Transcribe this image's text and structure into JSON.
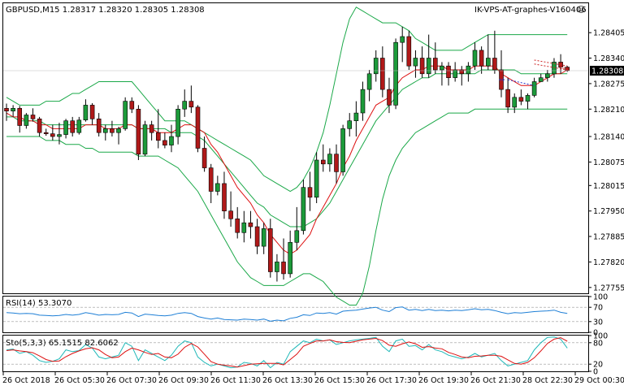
{
  "chart_data": {
    "type": "candlestick",
    "symbol_header": "GBPUSD,M15  1.28317 1.28320 1.28305 1.28308",
    "watermark": "IK-VPS-AT-graphes-V160406",
    "smiley": "☺",
    "current_price_label": "1.28308",
    "current_price": 1.28308,
    "ylim": [
      1.2774,
      1.2848
    ],
    "price_ticks": [
      "1.28405",
      "1.28340",
      "1.28275",
      "1.28210",
      "1.28140",
      "1.28075",
      "1.28015",
      "1.27950",
      "1.27885",
      "1.27820",
      "1.27755"
    ],
    "price_tick_values": [
      1.28405,
      1.2834,
      1.28275,
      1.2821,
      1.2814,
      1.28075,
      1.28015,
      1.2795,
      1.27885,
      1.2782,
      1.27755
    ],
    "x_tick_labels": [
      "26 Oct 2018",
      "26 Oct 05:30",
      "26 Oct 07:30",
      "26 Oct 09:30",
      "26 Oct 11:30",
      "26 Oct 13:30",
      "26 Oct 15:30",
      "26 Oct 17:30",
      "26 Oct 19:30",
      "26 Oct 21:30",
      "28 Oct 22:30",
      "29 Oct 00:30"
    ],
    "candles": [
      [
        1.28212,
        1.28224,
        1.2818,
        1.28205
      ],
      [
        1.28205,
        1.2822,
        1.2819,
        1.28212
      ],
      [
        1.28212,
        1.28218,
        1.2815,
        1.28168
      ],
      [
        1.28168,
        1.282,
        1.2816,
        1.28195
      ],
      [
        1.28195,
        1.28212,
        1.28178,
        1.28185
      ],
      [
        1.28185,
        1.2819,
        1.2814,
        1.2815
      ],
      [
        1.2815,
        1.2816,
        1.28142,
        1.28147
      ],
      [
        1.28147,
        1.2817,
        1.2813,
        1.2814
      ],
      [
        1.2814,
        1.28175,
        1.2812,
        1.28145
      ],
      [
        1.28145,
        1.28185,
        1.28135,
        1.2818
      ],
      [
        1.2818,
        1.2819,
        1.2814,
        1.2815
      ],
      [
        1.2815,
        1.2819,
        1.28145,
        1.28182
      ],
      [
        1.28182,
        1.28235,
        1.28178,
        1.2822
      ],
      [
        1.2822,
        1.28225,
        1.2817,
        1.28185
      ],
      [
        1.28185,
        1.282,
        1.2814,
        1.2815
      ],
      [
        1.2815,
        1.2817,
        1.2813,
        1.2816
      ],
      [
        1.2816,
        1.2818,
        1.2814,
        1.2815
      ],
      [
        1.2815,
        1.28165,
        1.2812,
        1.2816
      ],
      [
        1.2816,
        1.2824,
        1.28155,
        1.2823
      ],
      [
        1.2823,
        1.2824,
        1.282,
        1.2821
      ],
      [
        1.2821,
        1.2822,
        1.2808,
        1.28095
      ],
      [
        1.28095,
        1.2818,
        1.2809,
        1.2817
      ],
      [
        1.2817,
        1.2818,
        1.2813,
        1.2815
      ],
      [
        1.2815,
        1.2821,
        1.2811,
        1.2813
      ],
      [
        1.2813,
        1.2815,
        1.2811,
        1.28118
      ],
      [
        1.28118,
        1.2817,
        1.281,
        1.2814
      ],
      [
        1.2814,
        1.2822,
        1.2812,
        1.2821
      ],
      [
        1.2821,
        1.2826,
        1.2819,
        1.2823
      ],
      [
        1.2823,
        1.2827,
        1.282,
        1.28215
      ],
      [
        1.28215,
        1.2822,
        1.281,
        1.2811
      ],
      [
        1.2811,
        1.2814,
        1.2805,
        1.2806
      ],
      [
        1.2806,
        1.2807,
        1.2797,
        1.28
      ],
      [
        1.28,
        1.2804,
        1.2799,
        1.2802
      ],
      [
        1.2802,
        1.2805,
        1.2793,
        1.2795
      ],
      [
        1.2795,
        1.28,
        1.2791,
        1.2793
      ],
      [
        1.2793,
        1.2796,
        1.2788,
        1.27895
      ],
      [
        1.27895,
        1.2795,
        1.2787,
        1.2792
      ],
      [
        1.2792,
        1.2795,
        1.2788,
        1.2791
      ],
      [
        1.2791,
        1.2793,
        1.2784,
        1.2786
      ],
      [
        1.2786,
        1.2792,
        1.2784,
        1.27905
      ],
      [
        1.27905,
        1.2793,
        1.2778,
        1.27795
      ],
      [
        1.27795,
        1.2784,
        1.2777,
        1.2782
      ],
      [
        1.2782,
        1.2788,
        1.27775,
        1.2779
      ],
      [
        1.2779,
        1.279,
        1.2778,
        1.2787
      ],
      [
        1.2787,
        1.2796,
        1.2785,
        1.279
      ],
      [
        1.279,
        1.2803,
        1.2789,
        1.2801
      ],
      [
        1.2801,
        1.2805,
        1.2795,
        1.27985
      ],
      [
        1.27985,
        1.281,
        1.2797,
        1.2808
      ],
      [
        1.2808,
        1.2812,
        1.2805,
        1.2807
      ],
      [
        1.2807,
        1.2811,
        1.2805,
        1.28095
      ],
      [
        1.28095,
        1.2812,
        1.2802,
        1.2805
      ],
      [
        1.2805,
        1.2817,
        1.2804,
        1.2816
      ],
      [
        1.2816,
        1.282,
        1.2814,
        1.2818
      ],
      [
        1.2818,
        1.2823,
        1.2814,
        1.282
      ],
      [
        1.282,
        1.2828,
        1.2818,
        1.2826
      ],
      [
        1.2826,
        1.2831,
        1.2823,
        1.283
      ],
      [
        1.283,
        1.2836,
        1.2828,
        1.2834
      ],
      [
        1.2834,
        1.2837,
        1.2824,
        1.2826
      ],
      [
        1.2826,
        1.2829,
        1.282,
        1.2822
      ],
      [
        1.2822,
        1.2839,
        1.2821,
        1.2838
      ],
      [
        1.2838,
        1.2842,
        1.2833,
        1.28395
      ],
      [
        1.28395,
        1.2841,
        1.2831,
        1.2832
      ],
      [
        1.2832,
        1.2836,
        1.2829,
        1.2834
      ],
      [
        1.2834,
        1.2837,
        1.2829,
        1.283
      ],
      [
        1.283,
        1.284,
        1.2829,
        1.2834
      ],
      [
        1.2834,
        1.2838,
        1.283,
        1.2831
      ],
      [
        1.2831,
        1.2833,
        1.2827,
        1.2832
      ],
      [
        1.2832,
        1.2833,
        1.2827,
        1.2829
      ],
      [
        1.2829,
        1.2833,
        1.2828,
        1.2831
      ],
      [
        1.2831,
        1.2832,
        1.2827,
        1.283
      ],
      [
        1.283,
        1.2833,
        1.2828,
        1.2832
      ],
      [
        1.2832,
        1.2838,
        1.2831,
        1.2836
      ],
      [
        1.2836,
        1.2837,
        1.283,
        1.2832
      ],
      [
        1.2832,
        1.284,
        1.2831,
        1.2834
      ],
      [
        1.2834,
        1.2841,
        1.283,
        1.2831
      ],
      [
        1.2831,
        1.2836,
        1.2824,
        1.2826
      ],
      [
        1.2826,
        1.2829,
        1.282,
        1.28215
      ],
      [
        1.28215,
        1.2825,
        1.282,
        1.2824
      ],
      [
        1.2824,
        1.2826,
        1.2822,
        1.2823
      ],
      [
        1.2823,
        1.2825,
        1.2821,
        1.28245
      ],
      [
        1.28245,
        1.2829,
        1.2824,
        1.2828
      ],
      [
        1.2828,
        1.283,
        1.2828,
        1.2829
      ],
      [
        1.2829,
        1.2831,
        1.2828,
        1.283
      ],
      [
        1.283,
        1.2834,
        1.2829,
        1.2833
      ],
      [
        1.2833,
        1.2835,
        1.283,
        1.28317
      ],
      [
        1.28317,
        1.2832,
        1.28305,
        1.28308
      ]
    ],
    "bb_upper": [
      1.2824,
      1.2823,
      1.2822,
      1.2822,
      1.2822,
      1.2822,
      1.2823,
      1.2823,
      1.2823,
      1.2824,
      1.2825,
      1.2825,
      1.2826,
      1.2827,
      1.2828,
      1.2828,
      1.2828,
      1.2828,
      1.2828,
      1.2828,
      1.2826,
      1.2824,
      1.2822,
      1.282,
      1.2818,
      1.2818,
      1.2818,
      1.2818,
      1.2817,
      1.2816,
      1.2815,
      1.2814,
      1.2813,
      1.2812,
      1.2811,
      1.281,
      1.2809,
      1.2808,
      1.2806,
      1.2804,
      1.2803,
      1.2802,
      1.2801,
      1.28,
      1.2801,
      1.2803,
      1.2806,
      1.281,
      1.2815,
      1.2822,
      1.283,
      1.2838,
      1.2844,
      1.2847,
      1.2846,
      1.2845,
      1.2844,
      1.2843,
      1.2843,
      1.2843,
      1.2842,
      1.2841,
      1.2839,
      1.2838,
      1.2837,
      1.2836,
      1.2836,
      1.2836,
      1.2836,
      1.2836,
      1.2837,
      1.2838,
      1.2839,
      1.284,
      1.284,
      1.284,
      1.284,
      1.284,
      1.284,
      1.284,
      1.284,
      1.284,
      1.284,
      1.284,
      1.284,
      1.284
    ],
    "bb_middle": [
      1.2819,
      1.2819,
      1.2818,
      1.2818,
      1.2818,
      1.2818,
      1.2817,
      1.2817,
      1.2817,
      1.2817,
      1.2817,
      1.2817,
      1.2817,
      1.2817,
      1.2817,
      1.2817,
      1.2817,
      1.2817,
      1.2817,
      1.2817,
      1.2816,
      1.2816,
      1.2816,
      1.2816,
      1.2816,
      1.2815,
      1.2815,
      1.2815,
      1.2815,
      1.2814,
      1.2813,
      1.2811,
      1.2809,
      1.2807,
      1.2805,
      1.2803,
      1.2801,
      1.2799,
      1.2797,
      1.2796,
      1.2794,
      1.2793,
      1.2792,
      1.2791,
      1.2791,
      1.2791,
      1.2792,
      1.2793,
      1.2795,
      1.2797,
      1.28,
      1.2803,
      1.2806,
      1.2809,
      1.2812,
      1.2815,
      1.2818,
      1.282,
      1.2822,
      1.2824,
      1.2826,
      1.2827,
      1.2828,
      1.2829,
      1.2829,
      1.283,
      1.283,
      1.283,
      1.283,
      1.283,
      1.283,
      1.283,
      1.2831,
      1.2831,
      1.2831,
      1.2831,
      1.2831,
      1.2831,
      1.283,
      1.283,
      1.283,
      1.283,
      1.283,
      1.283,
      1.283,
      1.283
    ],
    "bb_lower": [
      1.2814,
      1.2814,
      1.2814,
      1.2814,
      1.2814,
      1.2814,
      1.2813,
      1.2813,
      1.2813,
      1.2812,
      1.2812,
      1.2812,
      1.2811,
      1.2811,
      1.281,
      1.281,
      1.281,
      1.281,
      1.281,
      1.281,
      1.2809,
      1.2809,
      1.2809,
      1.2809,
      1.2808,
      1.2807,
      1.2806,
      1.2804,
      1.2802,
      1.28,
      1.2797,
      1.2794,
      1.2791,
      1.2788,
      1.2785,
      1.2782,
      1.278,
      1.2778,
      1.2777,
      1.2776,
      1.2776,
      1.2776,
      1.2776,
      1.2777,
      1.2778,
      1.2779,
      1.2779,
      1.2778,
      1.2777,
      1.2775,
      1.2773,
      1.2772,
      1.2771,
      1.2771,
      1.2774,
      1.2781,
      1.279,
      1.2798,
      1.2804,
      1.2808,
      1.2811,
      1.2813,
      1.2815,
      1.2816,
      1.2817,
      1.2818,
      1.2819,
      1.282,
      1.282,
      1.282,
      1.282,
      1.2821,
      1.2821,
      1.2821,
      1.2821,
      1.2821,
      1.2821,
      1.2821,
      1.2821,
      1.2821,
      1.2821,
      1.2821,
      1.2821,
      1.2821,
      1.2821,
      1.2821
    ],
    "ma": [
      1.282,
      1.2819,
      1.2819,
      1.2818,
      1.2818,
      1.2817,
      1.2817,
      1.2816,
      1.2816,
      1.2816,
      1.2816,
      1.2816,
      1.2817,
      1.2817,
      1.2817,
      1.2816,
      1.2816,
      1.2816,
      1.2817,
      1.2817,
      1.2816,
      1.2816,
      1.2816,
      1.2815,
      1.2815,
      1.2815,
      1.2816,
      1.2817,
      1.2817,
      1.2816,
      1.2815,
      1.2812,
      1.281,
      1.2807,
      1.2804,
      1.2801,
      1.2799,
      1.2797,
      1.2794,
      1.2792,
      1.2789,
      1.2787,
      1.2785,
      1.2784,
      1.2785,
      1.2787,
      1.2789,
      1.2793,
      1.2796,
      1.2799,
      1.2802,
      1.2806,
      1.2809,
      1.2813,
      1.2816,
      1.2819,
      1.2822,
      1.2823,
      1.2824,
      1.2827,
      1.2829,
      1.283,
      1.2831,
      1.2831,
      1.2832,
      1.2832,
      1.2832,
      1.2831,
      1.2831,
      1.2831,
      1.2831,
      1.2832,
      1.2832,
      1.2832,
      1.2832,
      1.283,
      1.2829,
      1.2828,
      1.2827,
      1.2827,
      1.2827,
      1.2828,
      1.2829,
      1.283,
      1.283,
      1.2831
    ],
    "rsi_label": "RSI(14) 53.3070",
    "rsi_ticks": [
      "100",
      "70",
      "30",
      "0"
    ],
    "rsi_tick_values": [
      100,
      70,
      30,
      0
    ],
    "rsi": [
      55,
      54,
      52,
      53,
      52,
      48,
      47,
      46,
      47,
      50,
      48,
      50,
      55,
      52,
      48,
      50,
      49,
      50,
      56,
      54,
      44,
      51,
      49,
      47,
      46,
      48,
      53,
      55,
      53,
      44,
      40,
      37,
      40,
      36,
      35,
      34,
      37,
      36,
      34,
      37,
      31,
      34,
      32,
      39,
      42,
      49,
      47,
      54,
      53,
      55,
      51,
      59,
      61,
      62,
      65,
      68,
      70,
      62,
      58,
      69,
      71,
      62,
      64,
      61,
      64,
      61,
      62,
      60,
      62,
      61,
      63,
      66,
      63,
      64,
      61,
      56,
      52,
      55,
      54,
      56,
      58,
      59,
      60,
      62,
      56,
      53
    ],
    "sto_label": "Sto(5,3,3) 65.1515 82.6062",
    "sto_ticks": [
      "100",
      "80",
      "20",
      "0"
    ],
    "sto_tick_values": [
      100,
      80,
      20,
      0
    ],
    "sto_k": [
      60,
      62,
      50,
      55,
      45,
      30,
      25,
      28,
      35,
      60,
      55,
      58,
      75,
      65,
      40,
      35,
      40,
      45,
      80,
      70,
      30,
      60,
      50,
      40,
      30,
      45,
      70,
      85,
      80,
      40,
      25,
      15,
      20,
      15,
      10,
      12,
      25,
      22,
      15,
      30,
      10,
      25,
      20,
      55,
      70,
      85,
      80,
      90,
      85,
      88,
      75,
      80,
      85,
      88,
      90,
      92,
      95,
      70,
      55,
      85,
      90,
      70,
      72,
      60,
      75,
      60,
      55,
      45,
      40,
      35,
      40,
      50,
      40,
      45,
      50,
      30,
      15,
      20,
      25,
      30,
      60,
      80,
      95,
      96,
      90,
      65
    ],
    "sto_d": [
      58,
      60,
      57,
      55,
      52,
      43,
      33,
      28,
      29,
      41,
      50,
      57,
      63,
      66,
      60,
      47,
      38,
      40,
      55,
      65,
      60,
      53,
      47,
      50,
      40,
      38,
      48,
      67,
      78,
      68,
      48,
      27,
      20,
      17,
      15,
      12,
      16,
      20,
      21,
      22,
      22,
      22,
      18,
      33,
      48,
      70,
      78,
      85,
      85,
      88,
      83,
      81,
      80,
      84,
      88,
      90,
      92,
      86,
      73,
      70,
      77,
      82,
      77,
      67,
      69,
      65,
      63,
      53,
      47,
      40,
      38,
      42,
      43,
      45,
      45,
      42,
      32,
      22,
      20,
      25,
      38,
      57,
      78,
      90,
      94,
      84
    ]
  }
}
